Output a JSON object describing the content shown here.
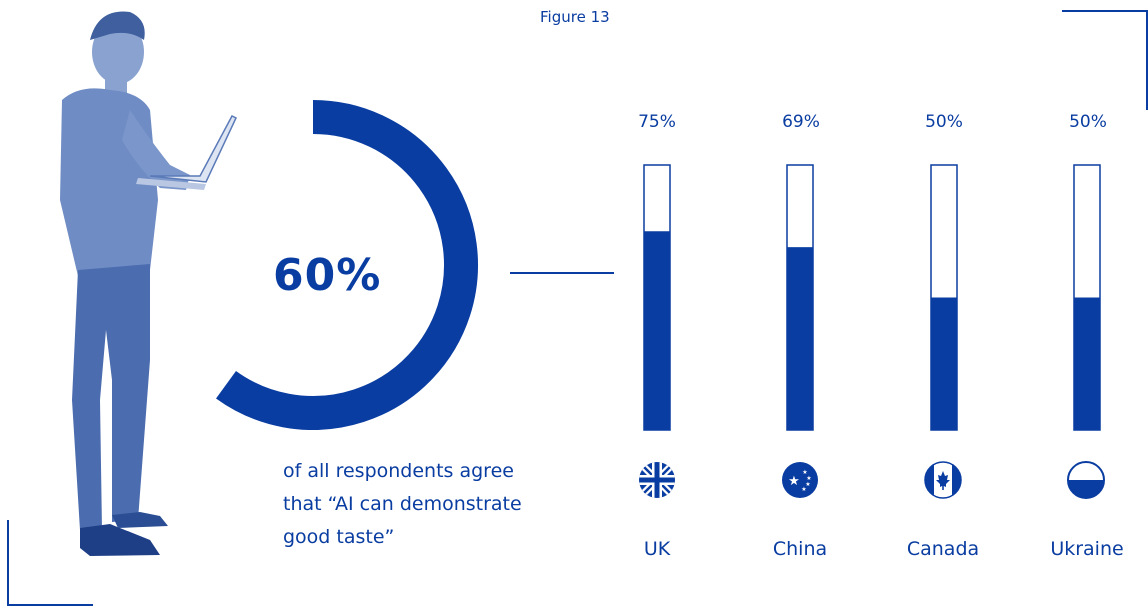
{
  "figure_label": "Figure 13",
  "headline": {
    "value": "60%",
    "fraction": 0.6,
    "caption_lines": [
      "of all respondents agree",
      "that “AI can demonstrate",
      "good taste”"
    ]
  },
  "colors": {
    "accent": "#0a3da1",
    "background": "#ffffff"
  },
  "chart_data": {
    "type": "bar",
    "title": "",
    "categories": [
      "UK",
      "China",
      "Canada",
      "Ukraine"
    ],
    "values": [
      75,
      69,
      50,
      50
    ],
    "value_labels": [
      "75%",
      "69%",
      "50%",
      "50%"
    ],
    "ylim": [
      0,
      100
    ],
    "grid": false,
    "icons": [
      "uk-flag-icon",
      "china-flag-icon",
      "canada-flag-icon",
      "ukraine-flag-icon"
    ]
  }
}
